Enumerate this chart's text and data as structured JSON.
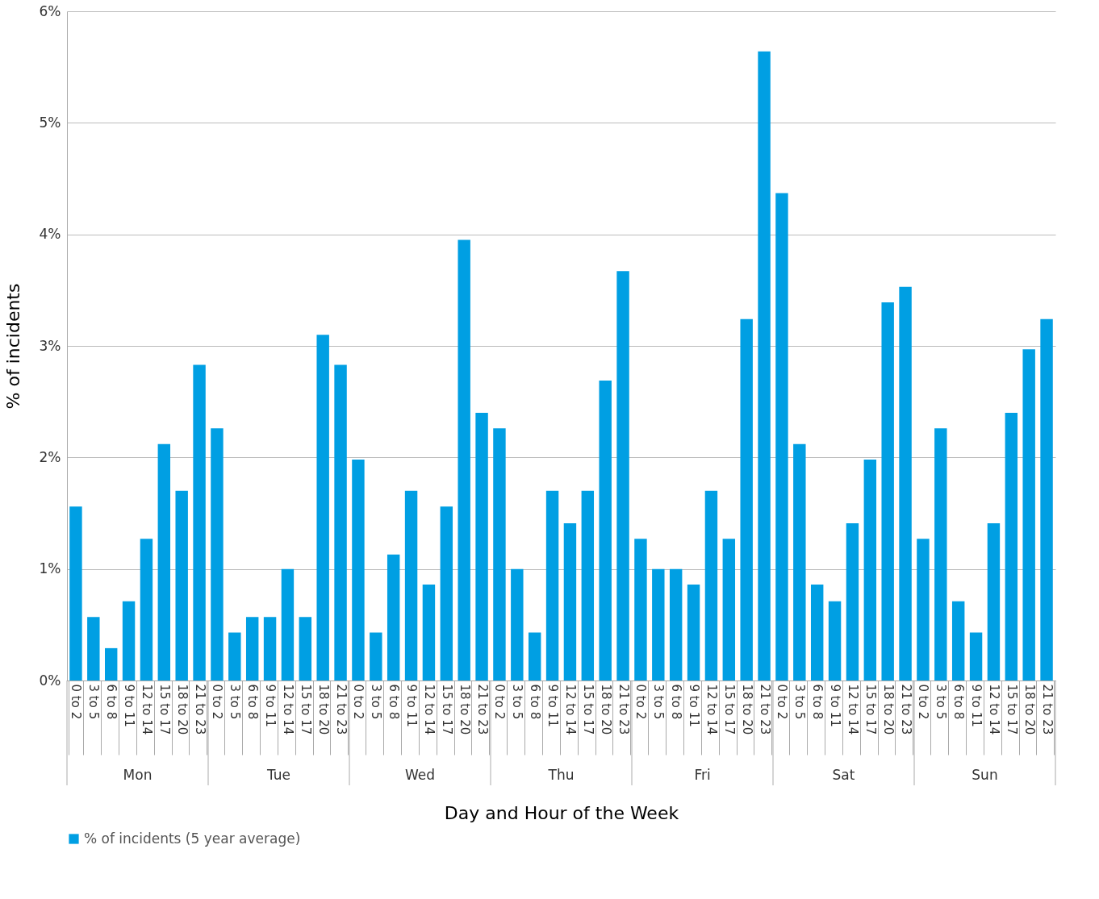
{
  "chart_data": {
    "type": "bar",
    "xlabel": "Day and Hour of the Week",
    "ylabel": "% of incidents",
    "categories": [
      "0 to 2",
      "3 to 5",
      "6 to 8",
      "9 to 11",
      "12 to 14",
      "15 to 17",
      "18 to 20",
      "21 to 23",
      "0 to 2",
      "3 to 5",
      "6 to 8",
      "9 to 11",
      "12 to 14",
      "15 to 17",
      "18 to 20",
      "21 to 23",
      "0 to 2",
      "3 to 5",
      "6 to 8",
      "9 to 11",
      "12 to 14",
      "15 to 17",
      "18 to 20",
      "21 to 23",
      "0 to 2",
      "3 to 5",
      "6 to 8",
      "9 to 11",
      "12 to 14",
      "15 to 17",
      "18 to 20",
      "21 to 23",
      "0 to 2",
      "3 to 5",
      "6 to 8",
      "9 to 11",
      "12 to 14",
      "15 to 17",
      "18 to 20",
      "21 to 23",
      "0 to 2",
      "3 to 5",
      "6 to 8",
      "9 to 11",
      "12 to 14",
      "15 to 17",
      "18 to 20",
      "21 to 23",
      "0 to 2",
      "3 to 5",
      "6 to 8",
      "9 to 11",
      "12 to 14",
      "15 to 17",
      "18 to 20",
      "21 to 23"
    ],
    "series": [
      {
        "name": "% of incidents (5 year average)",
        "color": "#009fe3",
        "values": [
          1.56,
          0.57,
          0.29,
          0.71,
          1.27,
          2.12,
          1.7,
          2.83,
          2.26,
          0.43,
          0.57,
          0.57,
          1.0,
          0.57,
          3.1,
          2.83,
          1.98,
          0.43,
          1.13,
          1.7,
          0.86,
          1.56,
          3.95,
          2.4,
          2.26,
          1.0,
          0.43,
          1.7,
          1.41,
          1.7,
          2.69,
          3.67,
          1.27,
          1.0,
          1.0,
          0.86,
          1.7,
          1.27,
          3.24,
          5.64,
          4.37,
          2.12,
          0.86,
          0.71,
          1.41,
          1.98,
          3.39,
          3.53,
          1.27,
          2.26,
          0.71,
          0.43,
          1.41,
          2.4,
          2.97,
          3.24
        ]
      }
    ],
    "annotations": [
      "Mon",
      "Tue",
      "Wed",
      "Thu",
      "Fri",
      "Sat",
      "Sun"
    ],
    "ylim": [
      0,
      6
    ],
    "yticks": [
      {
        "value": 0,
        "label": "0%"
      },
      {
        "value": 1,
        "label": "1%"
      },
      {
        "value": 2,
        "label": "2%"
      },
      {
        "value": 3,
        "label": "3%"
      },
      {
        "value": 4,
        "label": "4%"
      },
      {
        "value": 5,
        "label": "5%"
      },
      {
        "value": 6,
        "label": "6%"
      }
    ],
    "grid": "y",
    "legend": "bottom"
  }
}
